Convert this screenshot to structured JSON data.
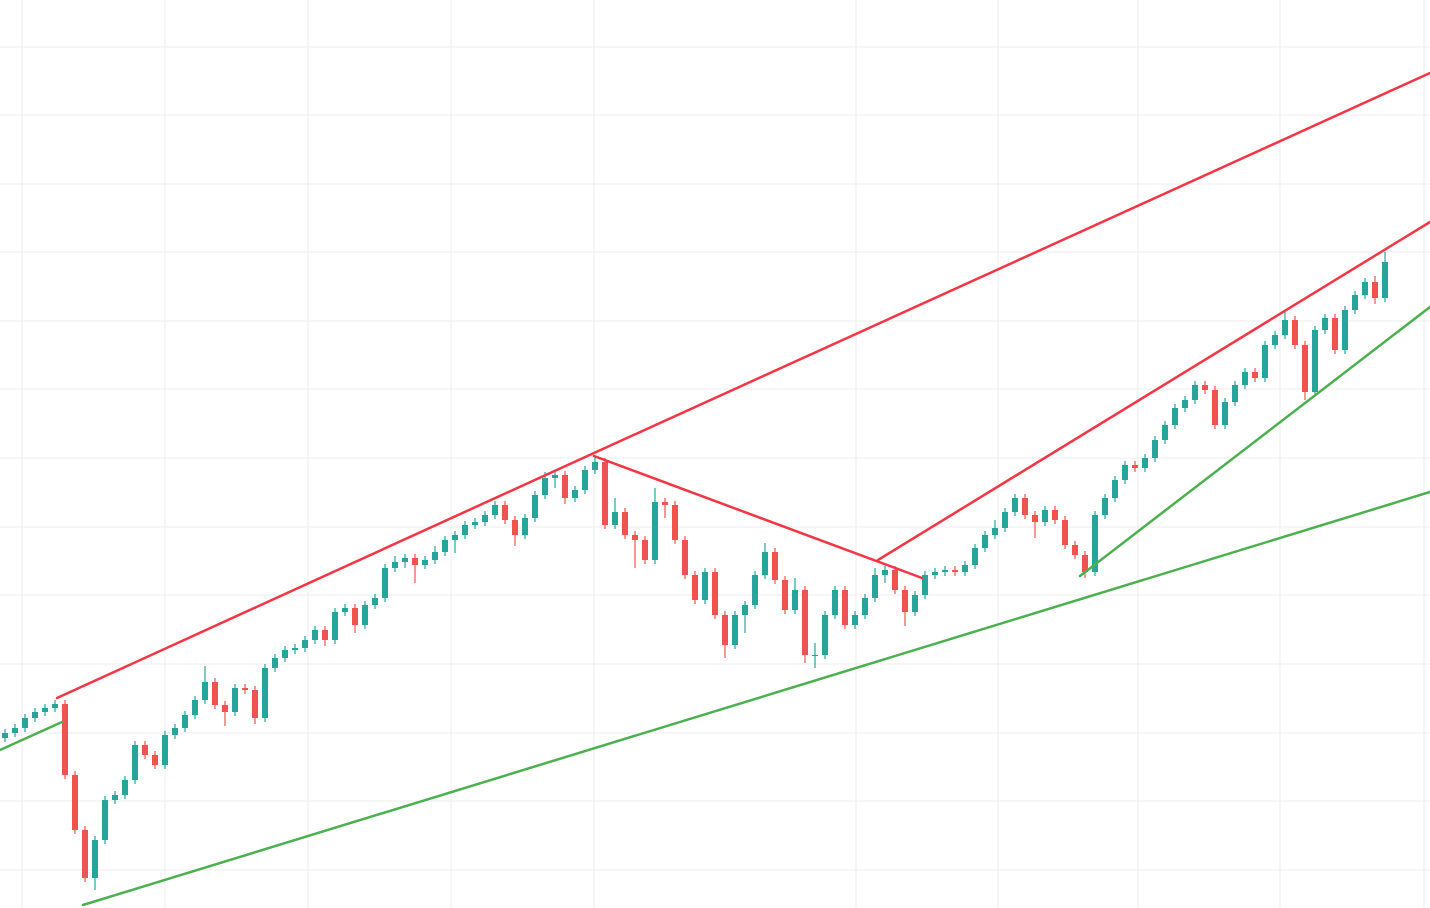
{
  "chart_data": {
    "type": "candlestick",
    "up_color": "#26a69a",
    "down_color": "#ef5350",
    "grid": true,
    "xlim": [
      -0.5,
      142.5
    ],
    "xticks": [
      1.7,
      16,
      30.3,
      44.6,
      58.9,
      85.1,
      99.3,
      113.3,
      127.5,
      141.9
    ],
    "ylim": [
      0,
      908
    ],
    "yticks": [
      38,
      107,
      175,
      244,
      313,
      381,
      450,
      519,
      587,
      656,
      724,
      793,
      861
    ],
    "candles": [
      [
        170,
        179,
        166,
        175
      ],
      [
        175,
        184,
        171,
        180
      ],
      [
        180,
        194,
        176,
        190
      ],
      [
        190,
        200,
        186,
        196
      ],
      [
        196,
        204,
        192,
        200
      ],
      [
        200,
        208,
        196,
        204
      ],
      [
        204,
        208,
        129,
        133
      ],
      [
        133,
        137,
        74,
        78
      ],
      [
        78,
        82,
        26,
        30
      ],
      [
        30,
        72,
        18,
        68
      ],
      [
        68,
        112,
        64,
        108
      ],
      [
        108,
        117,
        104,
        113
      ],
      [
        113,
        132,
        109,
        128
      ],
      [
        128,
        167,
        124,
        163
      ],
      [
        163,
        167,
        149,
        153
      ],
      [
        153,
        157,
        139,
        143
      ],
      [
        143,
        177,
        139,
        173
      ],
      [
        173,
        184,
        169,
        180
      ],
      [
        180,
        197,
        176,
        193
      ],
      [
        193,
        212,
        189,
        208
      ],
      [
        208,
        242,
        204,
        226
      ],
      [
        226,
        230,
        199,
        203
      ],
      [
        203,
        207,
        182,
        196
      ],
      [
        196,
        224,
        192,
        220
      ],
      [
        220,
        224,
        214,
        218
      ],
      [
        218,
        222,
        184,
        190
      ],
      [
        190,
        244,
        186,
        240
      ],
      [
        240,
        254,
        236,
        250
      ],
      [
        250,
        262,
        246,
        258
      ],
      [
        258,
        264,
        254,
        260
      ],
      [
        260,
        272,
        256,
        268
      ],
      [
        268,
        282,
        264,
        278
      ],
      [
        278,
        282,
        262,
        268
      ],
      [
        268,
        300,
        264,
        296
      ],
      [
        296,
        304,
        292,
        300
      ],
      [
        300,
        304,
        275,
        283
      ],
      [
        283,
        307,
        279,
        303
      ],
      [
        303,
        314,
        299,
        310
      ],
      [
        310,
        344,
        306,
        340
      ],
      [
        340,
        352,
        336,
        346
      ],
      [
        346,
        354,
        340,
        350
      ],
      [
        350,
        354,
        325,
        343
      ],
      [
        343,
        352,
        339,
        348
      ],
      [
        348,
        362,
        344,
        356
      ],
      [
        356,
        372,
        352,
        368
      ],
      [
        368,
        377,
        355,
        373
      ],
      [
        373,
        387,
        369,
        383
      ],
      [
        383,
        390,
        379,
        386
      ],
      [
        386,
        397,
        382,
        393
      ],
      [
        393,
        407,
        389,
        403
      ],
      [
        403,
        407,
        384,
        388
      ],
      [
        388,
        392,
        362,
        373
      ],
      [
        373,
        394,
        369,
        390
      ],
      [
        390,
        417,
        386,
        413
      ],
      [
        413,
        436,
        409,
        430
      ],
      [
        430,
        437,
        420,
        433
      ],
      [
        433,
        437,
        404,
        410
      ],
      [
        410,
        422,
        406,
        418
      ],
      [
        418,
        442,
        414,
        438
      ],
      [
        438,
        452,
        434,
        446
      ],
      [
        446,
        450,
        379,
        383
      ],
      [
        383,
        410,
        379,
        396
      ],
      [
        396,
        400,
        369,
        373
      ],
      [
        373,
        377,
        340,
        368
      ],
      [
        368,
        372,
        344,
        348
      ],
      [
        348,
        420,
        344,
        406
      ],
      [
        406,
        410,
        390,
        403
      ],
      [
        403,
        407,
        364,
        368
      ],
      [
        368,
        372,
        329,
        333
      ],
      [
        333,
        337,
        304,
        308
      ],
      [
        308,
        340,
        304,
        336
      ],
      [
        336,
        340,
        289,
        293
      ],
      [
        293,
        297,
        250,
        263
      ],
      [
        263,
        297,
        259,
        293
      ],
      [
        293,
        307,
        275,
        303
      ],
      [
        303,
        337,
        299,
        333
      ],
      [
        333,
        365,
        329,
        356
      ],
      [
        356,
        360,
        324,
        328
      ],
      [
        328,
        332,
        294,
        298
      ],
      [
        298,
        330,
        294,
        318
      ],
      [
        318,
        322,
        245,
        253
      ],
      [
        253,
        265,
        240,
        253
      ],
      [
        253,
        297,
        249,
        293
      ],
      [
        293,
        322,
        289,
        318
      ],
      [
        318,
        322,
        279,
        283
      ],
      [
        283,
        297,
        279,
        293
      ],
      [
        293,
        314,
        289,
        310
      ],
      [
        310,
        340,
        306,
        333
      ],
      [
        333,
        342,
        325,
        338
      ],
      [
        338,
        342,
        314,
        318
      ],
      [
        318,
        322,
        282,
        296
      ],
      [
        296,
        317,
        292,
        313
      ],
      [
        313,
        337,
        309,
        333
      ],
      [
        333,
        340,
        329,
        336
      ],
      [
        336,
        342,
        332,
        338
      ],
      [
        338,
        342,
        332,
        336
      ],
      [
        336,
        347,
        332,
        343
      ],
      [
        343,
        364,
        339,
        360
      ],
      [
        360,
        377,
        356,
        373
      ],
      [
        373,
        388,
        369,
        380
      ],
      [
        380,
        400,
        376,
        396
      ],
      [
        396,
        414,
        392,
        410
      ],
      [
        410,
        414,
        389,
        393
      ],
      [
        393,
        397,
        370,
        386
      ],
      [
        386,
        402,
        382,
        398
      ],
      [
        398,
        402,
        384,
        388
      ],
      [
        388,
        392,
        359,
        363
      ],
      [
        363,
        367,
        349,
        353
      ],
      [
        353,
        357,
        330,
        336
      ],
      [
        336,
        397,
        332,
        393
      ],
      [
        393,
        414,
        389,
        410
      ],
      [
        410,
        432,
        406,
        428
      ],
      [
        428,
        447,
        424,
        443
      ],
      [
        443,
        447,
        436,
        440
      ],
      [
        440,
        454,
        436,
        450
      ],
      [
        450,
        472,
        446,
        468
      ],
      [
        468,
        487,
        464,
        483
      ],
      [
        483,
        504,
        479,
        500
      ],
      [
        500,
        512,
        496,
        508
      ],
      [
        508,
        527,
        504,
        523
      ],
      [
        523,
        527,
        514,
        518
      ],
      [
        518,
        522,
        479,
        483
      ],
      [
        483,
        510,
        479,
        506
      ],
      [
        506,
        527,
        502,
        523
      ],
      [
        523,
        540,
        519,
        536
      ],
      [
        536,
        540,
        526,
        530
      ],
      [
        530,
        567,
        526,
        563
      ],
      [
        563,
        577,
        559,
        573
      ],
      [
        573,
        596,
        569,
        588
      ],
      [
        588,
        592,
        559,
        563
      ],
      [
        563,
        567,
        508,
        516
      ],
      [
        516,
        582,
        512,
        578
      ],
      [
        578,
        594,
        574,
        590
      ],
      [
        590,
        594,
        554,
        558
      ],
      [
        558,
        602,
        554,
        598
      ],
      [
        598,
        617,
        594,
        613
      ],
      [
        613,
        630,
        609,
        626
      ],
      [
        626,
        632,
        604,
        610
      ],
      [
        610,
        656,
        606,
        646
      ]
    ]
  }
}
